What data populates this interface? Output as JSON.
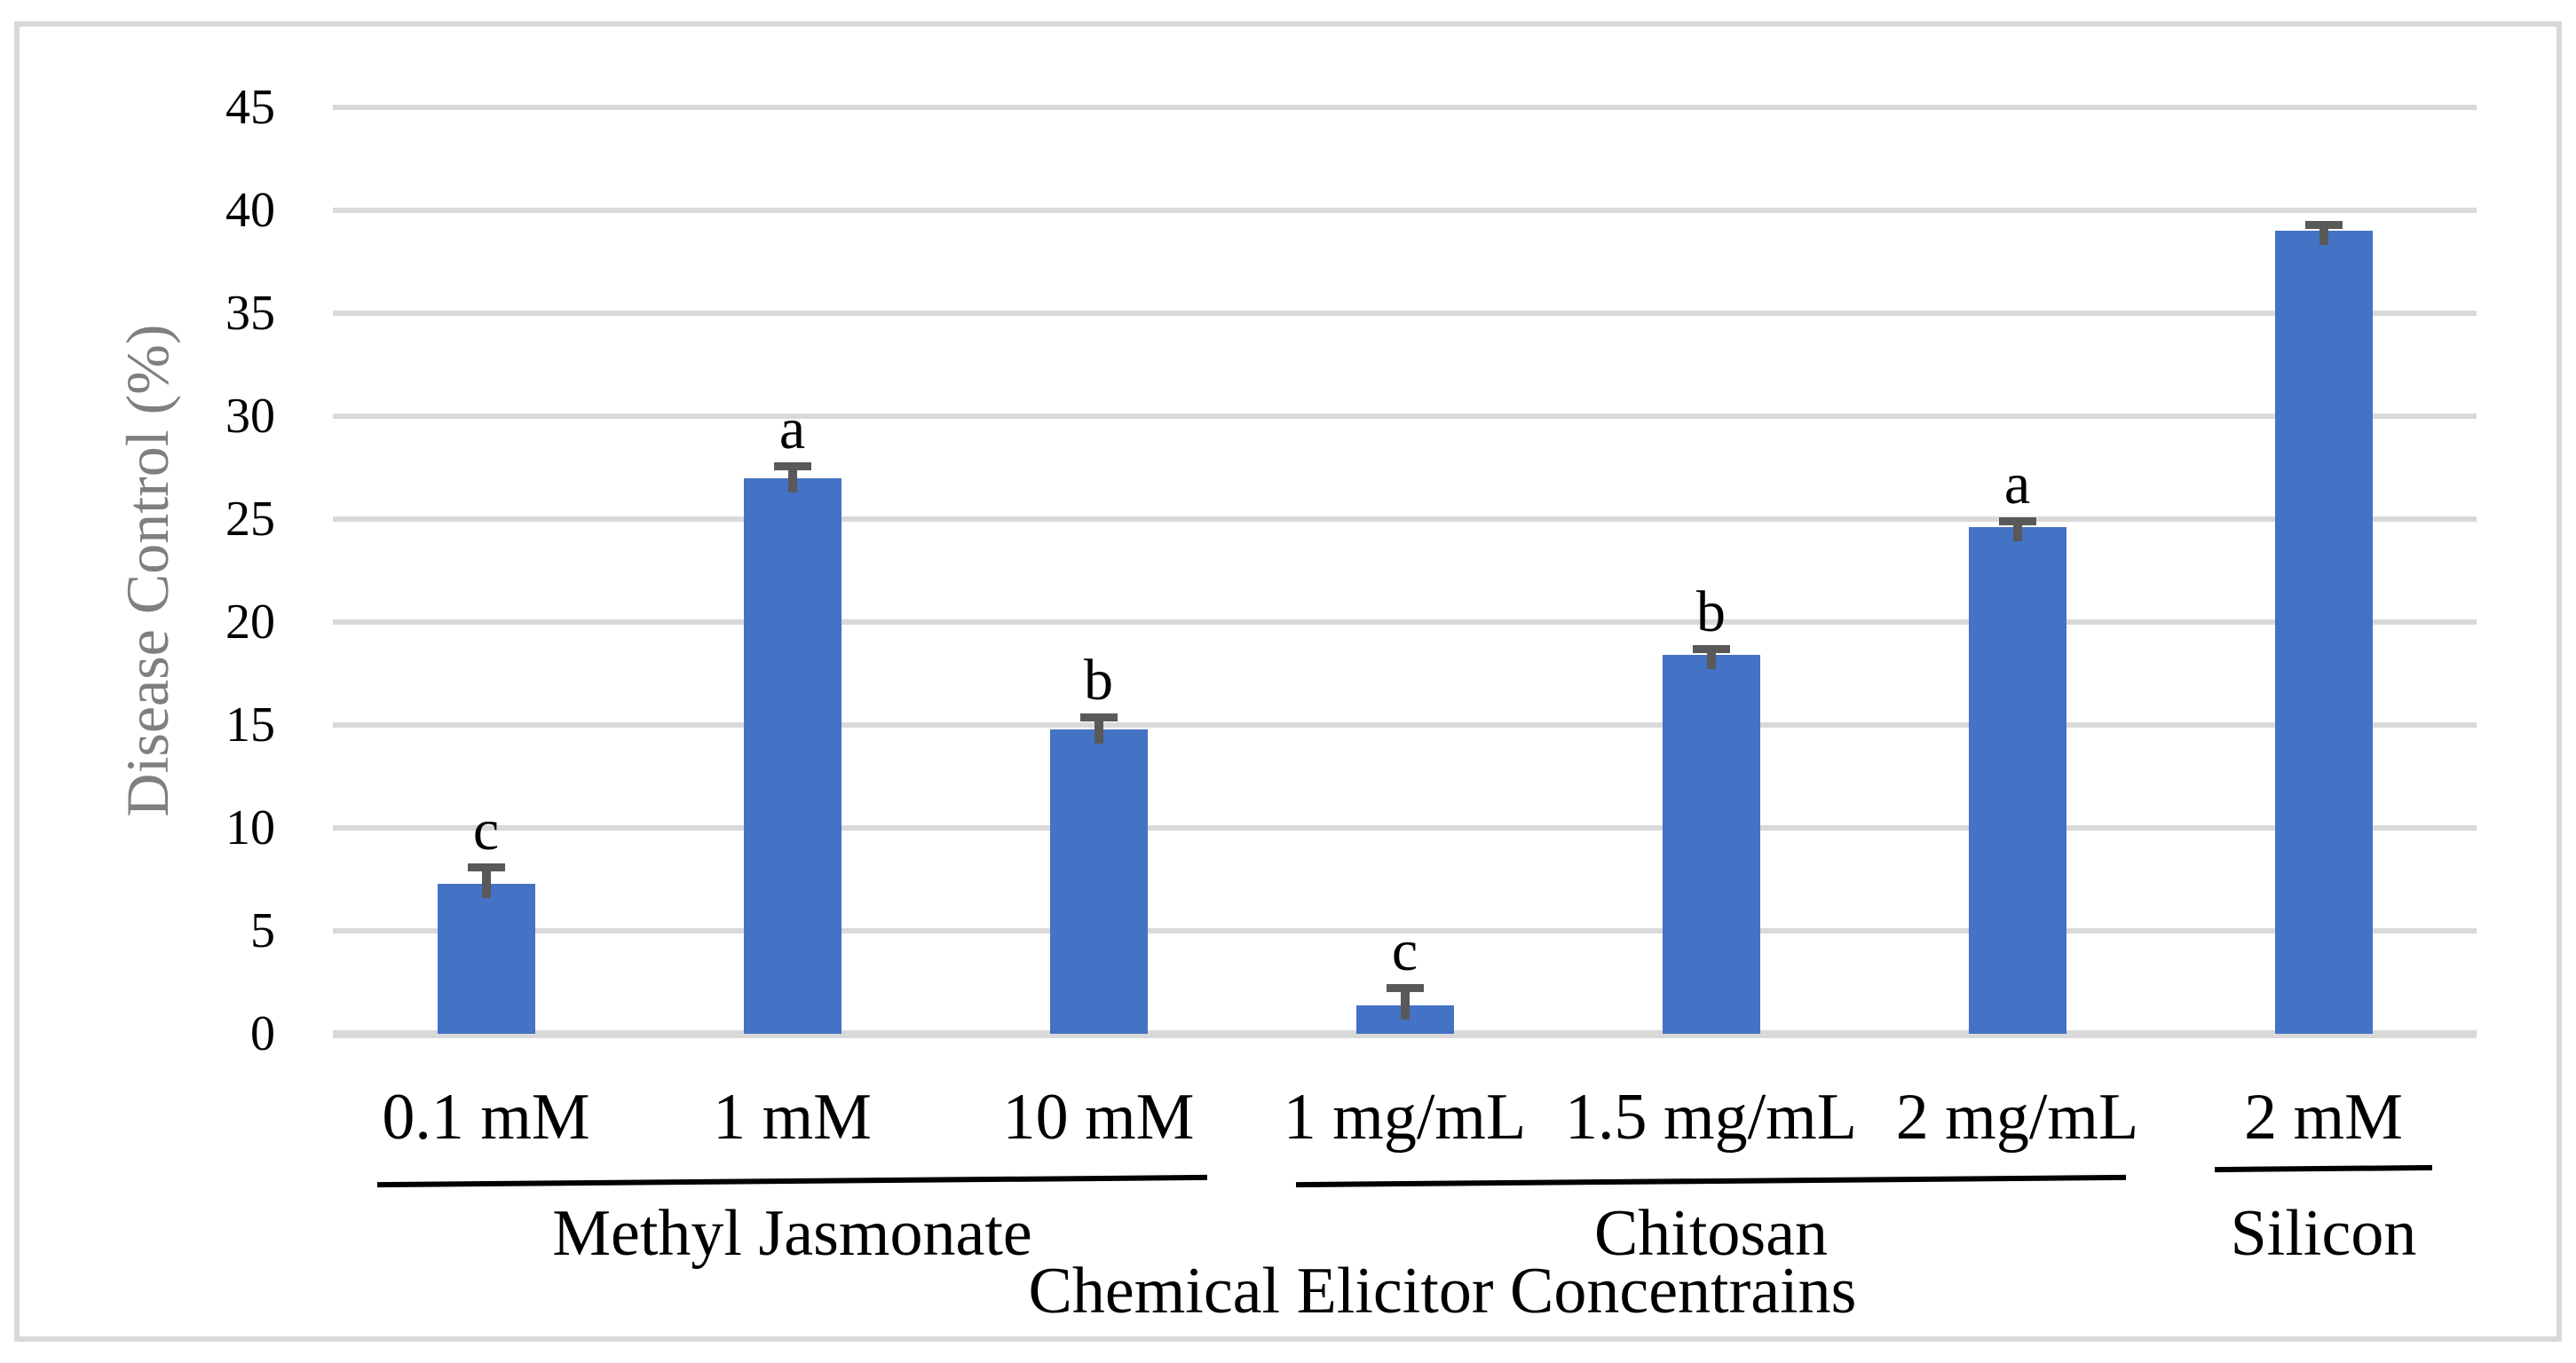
{
  "figure": {
    "background": "#ffffff",
    "frame_color": "#d9d9d9"
  },
  "chart_data": {
    "type": "bar",
    "title": "",
    "xlabel": "Chemical Elicitor Concentrains",
    "ylabel": "Disease Control (%)",
    "ylim": [
      0,
      45
    ],
    "ytick_step": 5,
    "yticks": [
      45,
      40,
      35,
      30,
      25,
      20,
      15,
      10,
      5,
      0
    ],
    "grid": true,
    "legend": "none",
    "bar_color": "#4472c4",
    "error_bar_color": "#595959",
    "gridline_color": "#d9d9d9",
    "categories": [
      "0.1 mM",
      "1 mM",
      "10 mM",
      "1 mg/mL",
      "1.5 mg/mL",
      "2 mg/mL",
      "2 mM"
    ],
    "values": [
      7.3,
      27.0,
      14.8,
      1.4,
      18.4,
      24.6,
      39.0
    ],
    "errors": [
      0.8,
      0.6,
      0.6,
      0.85,
      0.3,
      0.3,
      0.3
    ],
    "sig_letters": [
      "c",
      "a",
      "b",
      "c",
      "b",
      "a",
      ""
    ],
    "groups": [
      {
        "label": "Methyl Jasmonate",
        "span": [
          0,
          2
        ]
      },
      {
        "label": "Chitosan",
        "span": [
          3,
          5
        ]
      },
      {
        "label": "Silicon",
        "span": [
          6,
          6
        ]
      }
    ]
  }
}
